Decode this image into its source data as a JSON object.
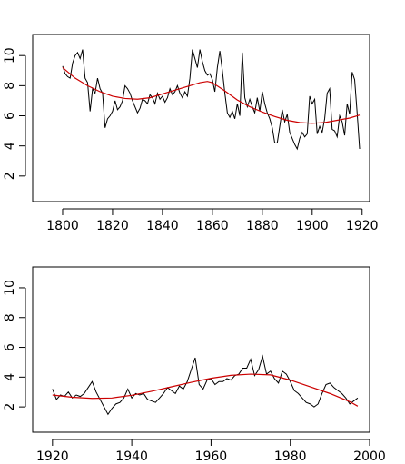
{
  "chart_data": [
    {
      "type": "line",
      "title": "",
      "xlabel": "",
      "ylabel": "",
      "xlim": [
        1788,
        1923
      ],
      "ylim": [
        0.3,
        11.4
      ],
      "xticks": [
        1800,
        1820,
        1840,
        1860,
        1880,
        1900,
        1920
      ],
      "yticks": [
        2,
        4,
        6,
        8,
        10
      ],
      "colors": {
        "series": "#000000",
        "trend": "#cc0000"
      },
      "series": [
        {
          "values": [
            [
              1800,
              9.3
            ],
            [
              1801,
              8.8
            ],
            [
              1802,
              8.6
            ],
            [
              1803,
              8.5
            ],
            [
              1804,
              9.5
            ],
            [
              1805,
              10.0
            ],
            [
              1806,
              10.2
            ],
            [
              1807,
              9.8
            ],
            [
              1808,
              10.4
            ],
            [
              1809,
              8.5
            ],
            [
              1810,
              8.2
            ],
            [
              1811,
              6.3
            ],
            [
              1812,
              7.8
            ],
            [
              1813,
              7.5
            ],
            [
              1814,
              8.5
            ],
            [
              1815,
              7.8
            ],
            [
              1816,
              7.5
            ],
            [
              1817,
              5.2
            ],
            [
              1818,
              5.8
            ],
            [
              1819,
              6.0
            ],
            [
              1820,
              6.3
            ],
            [
              1821,
              7.0
            ],
            [
              1822,
              6.4
            ],
            [
              1823,
              6.6
            ],
            [
              1824,
              7.0
            ],
            [
              1825,
              8.0
            ],
            [
              1826,
              7.8
            ],
            [
              1827,
              7.5
            ],
            [
              1828,
              7.0
            ],
            [
              1829,
              6.6
            ],
            [
              1830,
              6.2
            ],
            [
              1831,
              6.5
            ],
            [
              1832,
              7.1
            ],
            [
              1833,
              7.0
            ],
            [
              1834,
              6.8
            ],
            [
              1835,
              7.4
            ],
            [
              1836,
              7.2
            ],
            [
              1837,
              6.8
            ],
            [
              1838,
              7.5
            ],
            [
              1839,
              7.1
            ],
            [
              1840,
              7.3
            ],
            [
              1841,
              6.9
            ],
            [
              1842,
              7.2
            ],
            [
              1843,
              7.8
            ],
            [
              1844,
              7.4
            ],
            [
              1845,
              7.6
            ],
            [
              1846,
              8.0
            ],
            [
              1847,
              7.5
            ],
            [
              1848,
              7.2
            ],
            [
              1849,
              7.6
            ],
            [
              1850,
              7.3
            ],
            [
              1851,
              8.5
            ],
            [
              1852,
              10.4
            ],
            [
              1853,
              9.8
            ],
            [
              1854,
              9.2
            ],
            [
              1855,
              10.4
            ],
            [
              1856,
              9.6
            ],
            [
              1857,
              9.0
            ],
            [
              1858,
              8.7
            ],
            [
              1859,
              8.8
            ],
            [
              1860,
              8.4
            ],
            [
              1861,
              7.6
            ],
            [
              1862,
              9.2
            ],
            [
              1863,
              10.3
            ],
            [
              1864,
              9.0
            ],
            [
              1865,
              7.5
            ],
            [
              1866,
              6.2
            ],
            [
              1867,
              5.9
            ],
            [
              1868,
              6.3
            ],
            [
              1869,
              5.8
            ],
            [
              1870,
              6.8
            ],
            [
              1871,
              6.0
            ],
            [
              1872,
              10.2
            ],
            [
              1873,
              7.2
            ],
            [
              1874,
              6.6
            ],
            [
              1875,
              7.1
            ],
            [
              1876,
              6.6
            ],
            [
              1877,
              6.2
            ],
            [
              1878,
              7.2
            ],
            [
              1879,
              6.3
            ],
            [
              1880,
              7.6
            ],
            [
              1881,
              6.8
            ],
            [
              1882,
              6.2
            ],
            [
              1883,
              5.8
            ],
            [
              1884,
              5.2
            ],
            [
              1885,
              4.2
            ],
            [
              1886,
              4.2
            ],
            [
              1887,
              5.3
            ],
            [
              1888,
              6.4
            ],
            [
              1889,
              5.6
            ],
            [
              1890,
              6.1
            ],
            [
              1891,
              4.9
            ],
            [
              1892,
              4.5
            ],
            [
              1893,
              4.1
            ],
            [
              1894,
              3.8
            ],
            [
              1895,
              4.5
            ],
            [
              1896,
              4.9
            ],
            [
              1897,
              4.6
            ],
            [
              1898,
              4.8
            ],
            [
              1899,
              7.3
            ],
            [
              1900,
              6.8
            ],
            [
              1901,
              7.1
            ],
            [
              1902,
              4.8
            ],
            [
              1903,
              5.3
            ],
            [
              1904,
              4.9
            ],
            [
              1905,
              5.8
            ],
            [
              1906,
              7.5
            ],
            [
              1907,
              7.8
            ],
            [
              1908,
              5.1
            ],
            [
              1909,
              5.0
            ],
            [
              1910,
              4.6
            ],
            [
              1911,
              6.0
            ],
            [
              1912,
              5.6
            ],
            [
              1913,
              4.7
            ],
            [
              1914,
              6.8
            ],
            [
              1915,
              6.1
            ],
            [
              1916,
              8.9
            ],
            [
              1917,
              8.4
            ],
            [
              1918,
              6.2
            ],
            [
              1919,
              3.8
            ]
          ]
        }
      ],
      "trend": [
        [
          1800,
          9.2
        ],
        [
          1805,
          8.5
        ],
        [
          1810,
          8.0
        ],
        [
          1815,
          7.6
        ],
        [
          1820,
          7.3
        ],
        [
          1825,
          7.15
        ],
        [
          1830,
          7.1
        ],
        [
          1835,
          7.2
        ],
        [
          1840,
          7.45
        ],
        [
          1845,
          7.7
        ],
        [
          1850,
          7.95
        ],
        [
          1855,
          8.2
        ],
        [
          1858,
          8.28
        ],
        [
          1860,
          8.2
        ],
        [
          1865,
          7.65
        ],
        [
          1870,
          7.05
        ],
        [
          1875,
          6.6
        ],
        [
          1880,
          6.25
        ],
        [
          1885,
          5.95
        ],
        [
          1890,
          5.7
        ],
        [
          1895,
          5.55
        ],
        [
          1900,
          5.5
        ],
        [
          1905,
          5.55
        ],
        [
          1910,
          5.7
        ],
        [
          1915,
          5.85
        ],
        [
          1919,
          6.05
        ]
      ]
    },
    {
      "type": "line",
      "title": "",
      "xlabel": "",
      "ylabel": "",
      "xlim": [
        1915,
        2000
      ],
      "ylim": [
        0.3,
        11.4
      ],
      "xticks": [
        1920,
        1940,
        1960,
        1980,
        2000
      ],
      "yticks": [
        2,
        4,
        6,
        8,
        10
      ],
      "colors": {
        "series": "#000000",
        "trend": "#cc0000"
      },
      "series": [
        {
          "values": [
            [
              1920,
              3.2
            ],
            [
              1921,
              2.5
            ],
            [
              1922,
              2.8
            ],
            [
              1923,
              2.7
            ],
            [
              1924,
              3.0
            ],
            [
              1925,
              2.6
            ],
            [
              1926,
              2.8
            ],
            [
              1927,
              2.7
            ],
            [
              1928,
              2.9
            ],
            [
              1929,
              3.3
            ],
            [
              1930,
              3.7
            ],
            [
              1931,
              3.0
            ],
            [
              1932,
              2.5
            ],
            [
              1933,
              2.0
            ],
            [
              1934,
              1.5
            ],
            [
              1935,
              1.9
            ],
            [
              1936,
              2.2
            ],
            [
              1937,
              2.3
            ],
            [
              1938,
              2.6
            ],
            [
              1939,
              3.2
            ],
            [
              1940,
              2.6
            ],
            [
              1941,
              2.9
            ],
            [
              1942,
              2.8
            ],
            [
              1943,
              2.9
            ],
            [
              1944,
              2.5
            ],
            [
              1945,
              2.4
            ],
            [
              1946,
              2.3
            ],
            [
              1947,
              2.6
            ],
            [
              1948,
              2.9
            ],
            [
              1949,
              3.3
            ],
            [
              1950,
              3.1
            ],
            [
              1951,
              2.9
            ],
            [
              1952,
              3.4
            ],
            [
              1953,
              3.2
            ],
            [
              1954,
              3.7
            ],
            [
              1955,
              4.5
            ],
            [
              1956,
              5.3
            ],
            [
              1957,
              3.5
            ],
            [
              1958,
              3.2
            ],
            [
              1959,
              3.8
            ],
            [
              1960,
              3.9
            ],
            [
              1961,
              3.5
            ],
            [
              1962,
              3.7
            ],
            [
              1963,
              3.7
            ],
            [
              1964,
              3.9
            ],
            [
              1965,
              3.8
            ],
            [
              1966,
              4.1
            ],
            [
              1967,
              4.2
            ],
            [
              1968,
              4.6
            ],
            [
              1969,
              4.6
            ],
            [
              1970,
              5.2
            ],
            [
              1971,
              4.1
            ],
            [
              1972,
              4.5
            ],
            [
              1973,
              5.4
            ],
            [
              1974,
              4.2
            ],
            [
              1975,
              4.4
            ],
            [
              1976,
              3.9
            ],
            [
              1977,
              3.6
            ],
            [
              1978,
              4.4
            ],
            [
              1979,
              4.2
            ],
            [
              1980,
              3.7
            ],
            [
              1981,
              3.1
            ],
            [
              1982,
              2.9
            ],
            [
              1983,
              2.6
            ],
            [
              1984,
              2.3
            ],
            [
              1985,
              2.2
            ],
            [
              1986,
              2.0
            ],
            [
              1987,
              2.2
            ],
            [
              1988,
              2.9
            ],
            [
              1989,
              3.5
            ],
            [
              1990,
              3.6
            ],
            [
              1991,
              3.3
            ],
            [
              1992,
              3.1
            ],
            [
              1993,
              2.9
            ],
            [
              1994,
              2.6
            ],
            [
              1995,
              2.2
            ],
            [
              1996,
              2.4
            ],
            [
              1997,
              2.6
            ]
          ]
        }
      ],
      "trend": [
        [
          1920,
          2.8
        ],
        [
          1925,
          2.65
        ],
        [
          1930,
          2.57
        ],
        [
          1935,
          2.6
        ],
        [
          1940,
          2.78
        ],
        [
          1945,
          3.05
        ],
        [
          1950,
          3.35
        ],
        [
          1955,
          3.65
        ],
        [
          1960,
          3.92
        ],
        [
          1965,
          4.12
        ],
        [
          1970,
          4.2
        ],
        [
          1975,
          4.15
        ],
        [
          1980,
          3.8
        ],
        [
          1985,
          3.35
        ],
        [
          1990,
          2.9
        ],
        [
          1995,
          2.35
        ],
        [
          1997,
          2.05
        ]
      ]
    }
  ]
}
